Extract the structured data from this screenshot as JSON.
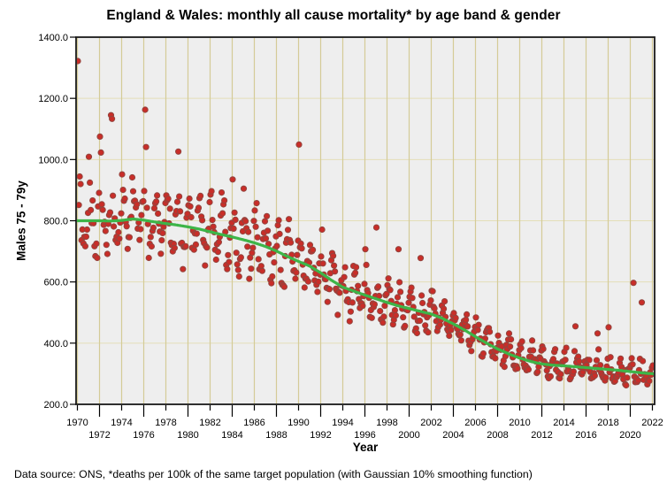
{
  "chart": {
    "title": "England & Wales: monthly all cause mortality* by age band & gender",
    "x_axis_label": "Year",
    "y_axis_label": "Males 75 - 79y",
    "footnote": "Data source: ONS, *deaths per 100k of the same target population (with Gaussian 10% smoothing function)"
  },
  "chart_data": {
    "type": "scatter",
    "title": "England & Wales: monthly all cause mortality* by age band & gender",
    "xlabel": "Year",
    "ylabel": "Males 75 - 79y",
    "xlim": [
      1970,
      2022
    ],
    "ylim": [
      200,
      1400
    ],
    "grid": "on",
    "legend": "none",
    "x_gridline_step_years": 2,
    "x_ticks_row1": [
      1970,
      1974,
      1978,
      1982,
      1986,
      1990,
      1994,
      1998,
      2002,
      2006,
      2010,
      2014,
      2018,
      2022
    ],
    "x_ticks_row2": [
      1972,
      1976,
      1980,
      1984,
      1988,
      1992,
      1996,
      2000,
      2004,
      2008,
      2012,
      2016,
      2020
    ],
    "y_ticks": [
      {
        "value": 1400,
        "label": "1400.0"
      },
      {
        "value": 1200,
        "label": "1200.0"
      },
      {
        "value": 1000,
        "label": "1000.0"
      },
      {
        "value": 800,
        "label": "800.0"
      },
      {
        "value": 600,
        "label": "600.0"
      },
      {
        "value": 400,
        "label": "400.0"
      },
      {
        "value": 200,
        "label": "200.0"
      }
    ],
    "style": {
      "plot_bg": "#eeeeee",
      "v_grid_color": "#d4cb97",
      "h_grid_color": "#e4deb8",
      "frame_color": "#1a1a1a",
      "point_fill": "#c92d28",
      "point_edge": "#93453f",
      "trend_color": "#3db548"
    },
    "series_trend": {
      "name": "Gaussian 10% smoothed trend",
      "type": "line",
      "color": "#3db548",
      "start_year": 1970,
      "values": [
        800,
        800,
        800,
        799,
        801,
        806,
        802,
        796,
        791,
        786,
        780,
        773,
        764,
        755,
        747,
        738,
        728,
        716,
        701,
        683,
        667,
        652,
        630,
        605,
        583,
        570,
        557,
        545,
        533,
        522,
        513,
        504,
        495,
        481,
        463,
        443,
        421,
        400,
        381,
        365,
        351,
        340,
        332,
        328,
        326,
        323,
        320,
        317,
        314,
        311,
        307,
        303,
        300
      ]
    },
    "scatter": {
      "name": "monthly all cause mortality (deaths per 100k)",
      "type": "scatter",
      "color": "#c92d28",
      "edge_color": "#93453f",
      "point_radius": 3.1,
      "model": {
        "description": "monthly points = yearly trend x seasonal cycle (winter high) + noise",
        "seed": 13,
        "months_per_year": 12,
        "seasonal_amplitude": 0.1,
        "seasonal_phase_month": 0.6,
        "noise_sd": 0.045,
        "clamp": [
          0.82,
          1.24
        ],
        "last_year": 2022,
        "last_year_months": 5
      },
      "outliers": [
        {
          "year": 1970,
          "month": 0,
          "value": 1322
        },
        {
          "year": 1971,
          "month": 0,
          "value": 1009
        },
        {
          "year": 1972,
          "month": 0,
          "value": 1075
        },
        {
          "year": 1972,
          "month": 1,
          "value": 1023
        },
        {
          "year": 1973,
          "month": 0,
          "value": 1145
        },
        {
          "year": 1973,
          "month": 1,
          "value": 1133
        },
        {
          "year": 1976,
          "month": 1,
          "value": 1163
        },
        {
          "year": 1976,
          "month": 2,
          "value": 1041
        },
        {
          "year": 1979,
          "month": 1,
          "value": 1026
        },
        {
          "year": 1984,
          "month": 0,
          "value": 935
        },
        {
          "year": 1985,
          "month": 0,
          "value": 905
        },
        {
          "year": 1990,
          "month": 0,
          "value": 1049
        },
        {
          "year": 1996,
          "month": 0,
          "value": 707
        },
        {
          "year": 1997,
          "month": 0,
          "value": 778
        },
        {
          "year": 1999,
          "month": 0,
          "value": 707
        },
        {
          "year": 2001,
          "month": 0,
          "value": 678
        },
        {
          "year": 2015,
          "month": 0,
          "value": 455
        },
        {
          "year": 2017,
          "month": 0,
          "value": 432
        },
        {
          "year": 2018,
          "month": 0,
          "value": 452
        },
        {
          "year": 2020,
          "month": 3,
          "value": 597
        },
        {
          "year": 2021,
          "month": 0,
          "value": 533
        }
      ]
    }
  }
}
